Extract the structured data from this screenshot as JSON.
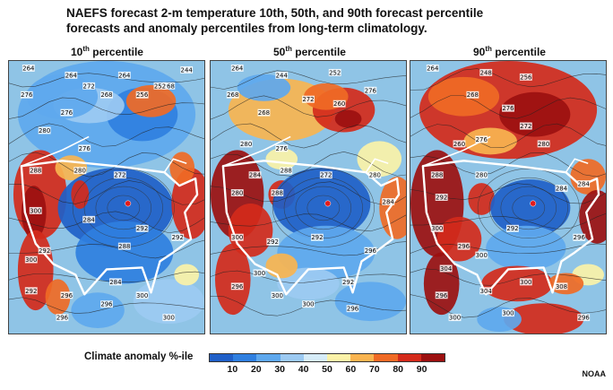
{
  "title_line1": "NAEFS forecast 2-m temperature 10th, 50th, and 90th forecast percentile",
  "title_line2": "forecasts and anomaly percentiles from long-term climatology.",
  "panels": [
    {
      "label_num": "10",
      "label_sup": "th",
      "label_text": " percentile",
      "contour_labels": [
        "264",
        "264",
        "244",
        "268",
        "276",
        "272",
        "256",
        "264",
        "252",
        "280",
        "276",
        "268",
        "288",
        "276",
        "280",
        "272",
        "284",
        "292",
        "300",
        "292",
        "288",
        "284",
        "292",
        "300",
        "292",
        "296",
        "300",
        "296",
        "300",
        "296"
      ]
    },
    {
      "label_num": "50",
      "label_sup": "th",
      "label_text": " percentile",
      "contour_labels": [
        "264",
        "244",
        "268",
        "252",
        "276",
        "272",
        "260",
        "268",
        "280",
        "276",
        "284",
        "288",
        "272",
        "280",
        "288",
        "292",
        "300",
        "292",
        "296",
        "300",
        "292",
        "296",
        "300",
        "296",
        "300",
        "280",
        "284"
      ]
    },
    {
      "label_num": "90",
      "label_sup": "th",
      "label_text": " percentile",
      "contour_labels": [
        "264",
        "248",
        "256",
        "268",
        "276",
        "272",
        "280",
        "260",
        "276",
        "288",
        "280",
        "292",
        "300",
        "292",
        "284",
        "296",
        "300",
        "304",
        "300",
        "296",
        "308",
        "300",
        "300",
        "296",
        "304",
        "284",
        "296"
      ]
    }
  ],
  "legend": {
    "title": "Climate anomaly %-ile",
    "ticks": [
      "10",
      "20",
      "30",
      "40",
      "50",
      "60",
      "70",
      "80",
      "90"
    ],
    "colors": [
      "#1f5fc8",
      "#2f7fe0",
      "#5ea8ee",
      "#9ccaf2",
      "#d6ecf8",
      "#fbf2a8",
      "#f9b450",
      "#f06a25",
      "#d42a1b",
      "#9c1010"
    ]
  },
  "credit": "NOAA"
}
